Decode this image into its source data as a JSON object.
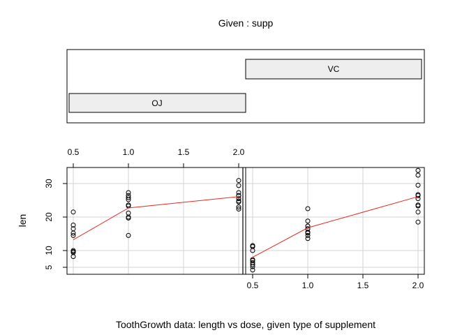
{
  "chart_data": {
    "type": "scatter",
    "title": "Given : supp",
    "xlabel": "ToothGrowth data: length vs dose, given type of supplement",
    "ylabel": "len",
    "xlim": [
      0.5,
      2.0
    ],
    "ylim": [
      4,
      35
    ],
    "x_ticks": [
      0.5,
      1.0,
      1.5,
      2.0
    ],
    "x_tick_labels": [
      "0.5",
      "1.0",
      "1.5",
      "2.0"
    ],
    "y_ticks": [
      5,
      10,
      20,
      30
    ],
    "y_tick_labels": [
      "5",
      "10",
      "20",
      "30"
    ],
    "grid": true,
    "given_levels": [
      "OJ",
      "VC"
    ],
    "panels": [
      {
        "name": "OJ",
        "points": [
          {
            "x": 0.5,
            "y": 15.2
          },
          {
            "x": 0.5,
            "y": 21.5
          },
          {
            "x": 0.5,
            "y": 17.6
          },
          {
            "x": 0.5,
            "y": 9.7
          },
          {
            "x": 0.5,
            "y": 14.5
          },
          {
            "x": 0.5,
            "y": 10.0
          },
          {
            "x": 0.5,
            "y": 8.2
          },
          {
            "x": 0.5,
            "y": 9.4
          },
          {
            "x": 0.5,
            "y": 16.5
          },
          {
            "x": 0.5,
            "y": 9.7
          },
          {
            "x": 1.0,
            "y": 19.7
          },
          {
            "x": 1.0,
            "y": 23.3
          },
          {
            "x": 1.0,
            "y": 23.6
          },
          {
            "x": 1.0,
            "y": 26.4
          },
          {
            "x": 1.0,
            "y": 20.0
          },
          {
            "x": 1.0,
            "y": 25.2
          },
          {
            "x": 1.0,
            "y": 25.8
          },
          {
            "x": 1.0,
            "y": 21.2
          },
          {
            "x": 1.0,
            "y": 14.5
          },
          {
            "x": 1.0,
            "y": 27.3
          },
          {
            "x": 2.0,
            "y": 25.5
          },
          {
            "x": 2.0,
            "y": 26.4
          },
          {
            "x": 2.0,
            "y": 22.4
          },
          {
            "x": 2.0,
            "y": 24.5
          },
          {
            "x": 2.0,
            "y": 24.8
          },
          {
            "x": 2.0,
            "y": 30.9
          },
          {
            "x": 2.0,
            "y": 26.4
          },
          {
            "x": 2.0,
            "y": 27.3
          },
          {
            "x": 2.0,
            "y": 29.4
          },
          {
            "x": 2.0,
            "y": 23.0
          }
        ],
        "smooth": [
          {
            "x": 0.5,
            "y": 13.2
          },
          {
            "x": 1.0,
            "y": 22.7
          },
          {
            "x": 2.0,
            "y": 26.1
          }
        ]
      },
      {
        "name": "VC",
        "points": [
          {
            "x": 0.5,
            "y": 4.2
          },
          {
            "x": 0.5,
            "y": 11.5
          },
          {
            "x": 0.5,
            "y": 7.3
          },
          {
            "x": 0.5,
            "y": 5.8
          },
          {
            "x": 0.5,
            "y": 6.4
          },
          {
            "x": 0.5,
            "y": 10.0
          },
          {
            "x": 0.5,
            "y": 11.2
          },
          {
            "x": 0.5,
            "y": 11.2
          },
          {
            "x": 0.5,
            "y": 5.2
          },
          {
            "x": 0.5,
            "y": 7.0
          },
          {
            "x": 1.0,
            "y": 16.5
          },
          {
            "x": 1.0,
            "y": 16.5
          },
          {
            "x": 1.0,
            "y": 15.2
          },
          {
            "x": 1.0,
            "y": 17.3
          },
          {
            "x": 1.0,
            "y": 22.5
          },
          {
            "x": 1.0,
            "y": 17.3
          },
          {
            "x": 1.0,
            "y": 13.6
          },
          {
            "x": 1.0,
            "y": 14.5
          },
          {
            "x": 1.0,
            "y": 18.8
          },
          {
            "x": 1.0,
            "y": 15.5
          },
          {
            "x": 2.0,
            "y": 23.6
          },
          {
            "x": 2.0,
            "y": 18.5
          },
          {
            "x": 2.0,
            "y": 33.9
          },
          {
            "x": 2.0,
            "y": 25.5
          },
          {
            "x": 2.0,
            "y": 26.4
          },
          {
            "x": 2.0,
            "y": 32.5
          },
          {
            "x": 2.0,
            "y": 26.7
          },
          {
            "x": 2.0,
            "y": 21.5
          },
          {
            "x": 2.0,
            "y": 23.3
          },
          {
            "x": 2.0,
            "y": 29.5
          }
        ],
        "smooth": [
          {
            "x": 0.5,
            "y": 8.0
          },
          {
            "x": 1.0,
            "y": 16.8
          },
          {
            "x": 2.0,
            "y": 26.1
          }
        ]
      }
    ],
    "colors": {
      "points": "#000000",
      "smooth_line": "#e8281f",
      "grid": "#d3d3d3",
      "strip_fill": "#eeeeee",
      "axes": "#000000"
    }
  }
}
